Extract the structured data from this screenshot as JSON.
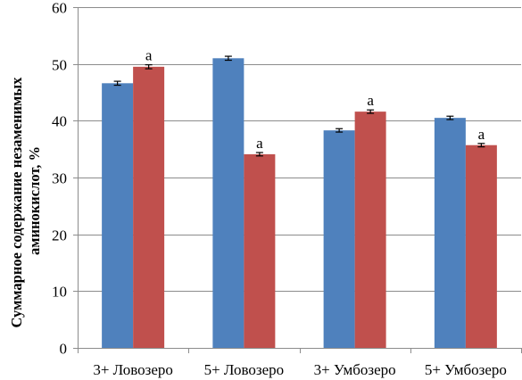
{
  "chart_data": {
    "type": "bar",
    "title": "",
    "xlabel": "",
    "ylabel_lines": [
      "Суммарное содержание незаменимых",
      "аминокислот, %"
    ],
    "ylim": [
      0,
      60
    ],
    "yticks": [
      0,
      10,
      20,
      30,
      40,
      50,
      60
    ],
    "grid": true,
    "legend": "none",
    "categories": [
      "3+ Ловозеро",
      "5+ Ловозеро",
      "3+ Умбозеро",
      "5+ Умбозеро"
    ],
    "series": [
      {
        "color": "#4F81BD",
        "values": [
          46.6,
          51.0,
          38.3,
          40.5
        ],
        "errors": [
          0.35,
          0.35,
          0.3,
          0.3
        ]
      },
      {
        "color": "#C0504D",
        "values": [
          49.5,
          34.1,
          41.6,
          35.7
        ],
        "errors": [
          0.35,
          0.3,
          0.3,
          0.3
        ]
      }
    ],
    "annotations": [
      {
        "series": 1,
        "category": 0,
        "text": "a"
      },
      {
        "series": 1,
        "category": 1,
        "text": "a"
      },
      {
        "series": 1,
        "category": 2,
        "text": "a"
      },
      {
        "series": 1,
        "category": 3,
        "text": "a"
      }
    ]
  }
}
